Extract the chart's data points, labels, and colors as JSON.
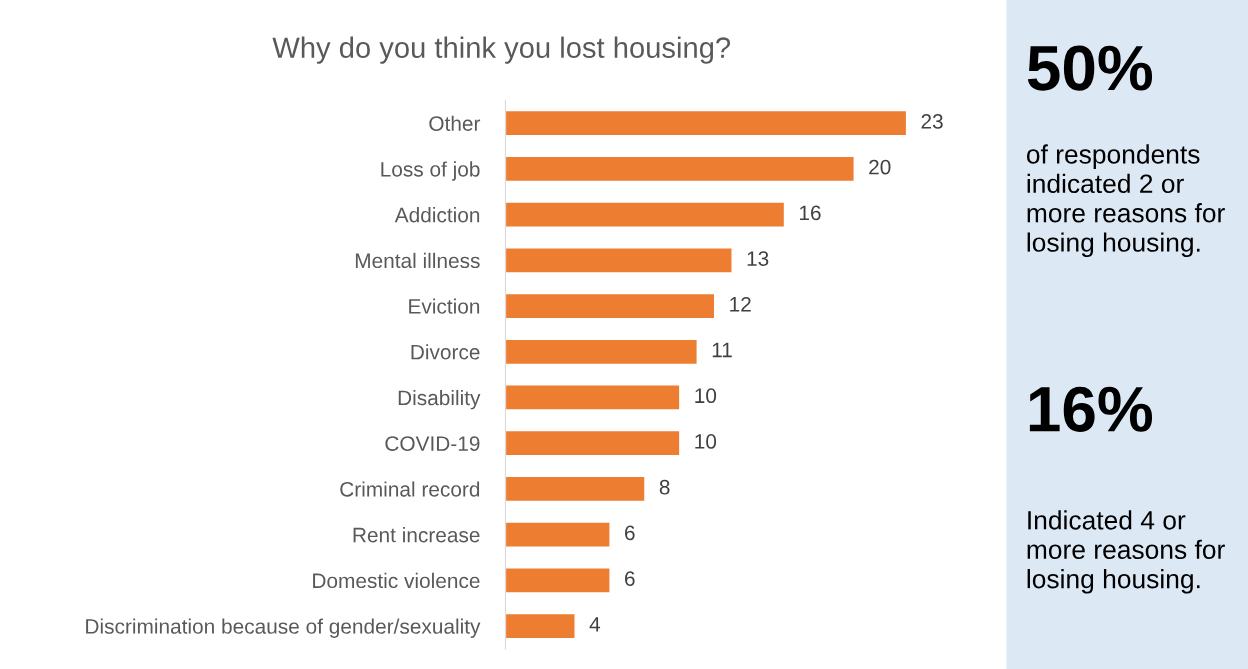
{
  "chart_data": {
    "type": "bar",
    "orientation": "horizontal",
    "title": "Why do you think you lost housing?",
    "categories": [
      "Other",
      "Loss of job",
      "Addiction",
      "Mental illness",
      "Eviction",
      "Divorce",
      "Disability",
      "COVID-19",
      "Criminal record",
      "Rent increase",
      "Domestic violence",
      "Discrimination because of gender/sexuality"
    ],
    "values": [
      23,
      20,
      16,
      13,
      12,
      11,
      10,
      10,
      8,
      6,
      6,
      4
    ],
    "color": "#ed7d31",
    "data_labels": true,
    "grid": false,
    "legend": false,
    "tick_labels": "y",
    "annotations": [
      "50%",
      "of respondents indicated 2 or more reasons for losing housing.",
      "16%",
      "Indicated 4 or more reasons for losing housing."
    ]
  }
}
